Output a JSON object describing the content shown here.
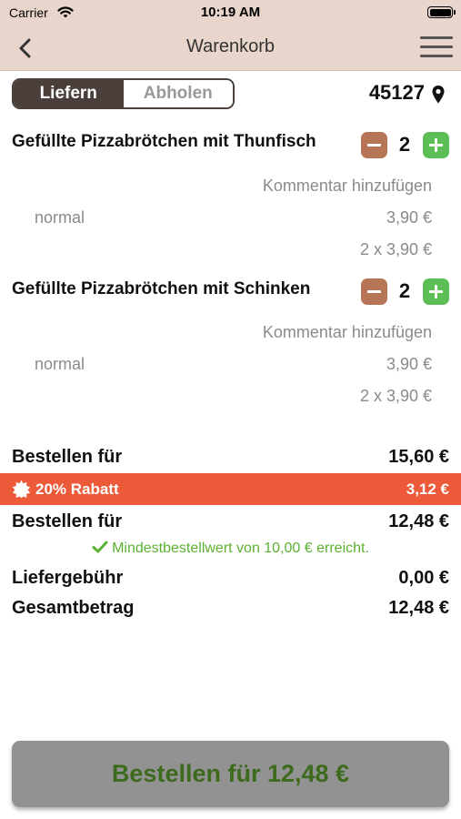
{
  "status": {
    "carrier": "Carrier",
    "time": "10:19 AM"
  },
  "navbar": {
    "title": "Warenkorb",
    "back_icon": "chevron-left-icon",
    "menu_icon": "hamburger-menu-icon"
  },
  "delivery_mode": {
    "options": [
      "Liefern",
      "Abholen"
    ],
    "selected": "Liefern"
  },
  "postcode": "45127",
  "items": [
    {
      "name": "Gefüllte Pizzabrötchen mit Thunfisch",
      "quantity": "2",
      "comment_label": "Kommentar hinzufügen",
      "variant": "normal",
      "unit_price": "3,90 €",
      "line_total": "2 x 3,90 €"
    },
    {
      "name": "Gefüllte Pizzabrötchen mit Schinken",
      "quantity": "2",
      "comment_label": "Kommentar hinzufügen",
      "variant": "normal",
      "unit_price": "3,90 €",
      "line_total": "2 x 3,90 €"
    }
  ],
  "summary": {
    "subtotal_label": "Bestellen für",
    "subtotal_value": "15,60 €",
    "discount_label": "20% Rabatt",
    "discount_value": "3,12 €",
    "discounted_label": "Bestellen für",
    "discounted_value": "12,48 €",
    "min_order_note": "Mindestbestellwert von 10,00 € erreicht.",
    "delivery_fee_label": "Liefergebühr",
    "delivery_fee_value": "0,00 €",
    "total_label": "Gesamtbetrag",
    "total_value": "12,48 €"
  },
  "order_button": {
    "label": "Bestellen für 12,48 €"
  },
  "colors": {
    "header_bg": "#e8d5cb",
    "segment_active": "#4a3f3a",
    "minus_button": "#b57556",
    "plus_button": "#5cbf55",
    "discount_bar": "#ec5a39",
    "success_text": "#5bb132",
    "order_button_bg": "#929292",
    "order_button_text": "#3d6b1e"
  }
}
